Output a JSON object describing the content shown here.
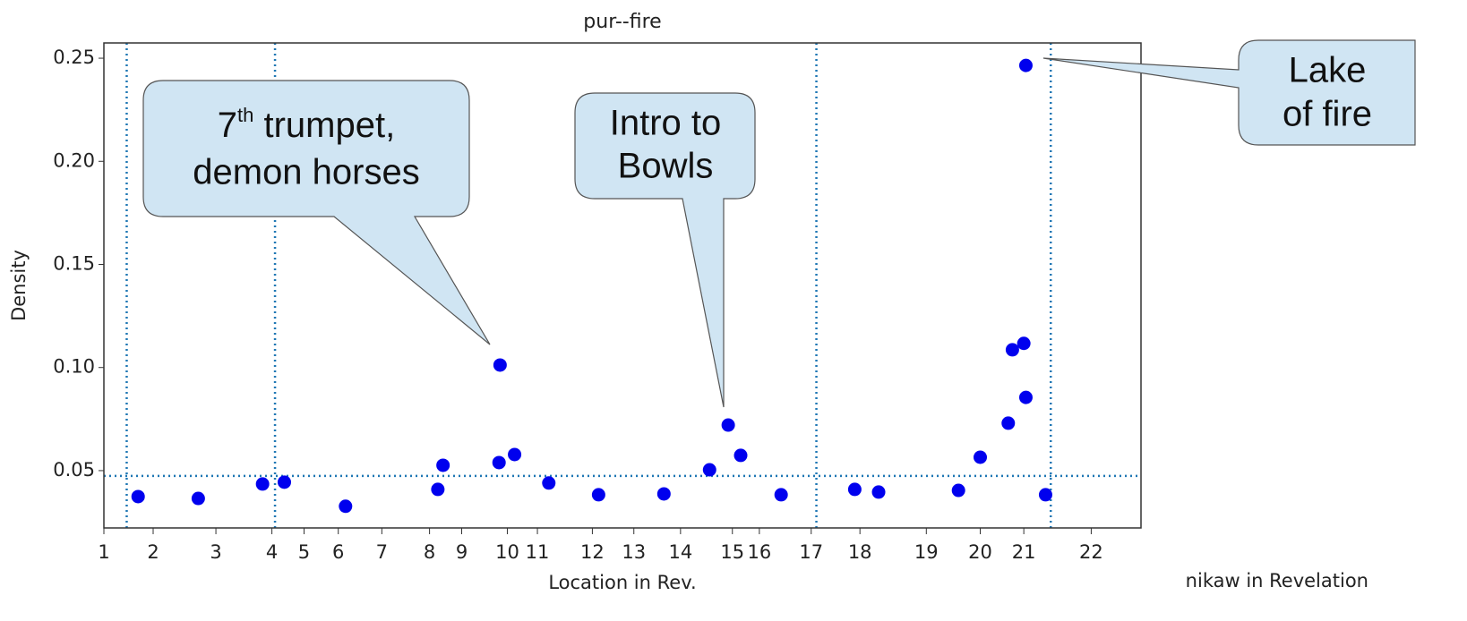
{
  "chart_data": {
    "type": "scatter",
    "title": "pur--fire",
    "x_label": "Location in Rev.",
    "y_label": "Density",
    "footer": "nikaw in Revelation",
    "color": "#0000ee",
    "reference_color": "#1f77b4",
    "xlim": [
      0,
      100
    ],
    "ylim": [
      0.0222,
      0.2574
    ],
    "xticks": [
      {
        "value": 0,
        "label": "1"
      },
      {
        "value": 4.75,
        "label": "2"
      },
      {
        "value": 10.8,
        "label": "3"
      },
      {
        "value": 16.2,
        "label": "4"
      },
      {
        "value": 19.3,
        "label": "5"
      },
      {
        "value": 22.6,
        "label": "6"
      },
      {
        "value": 26.8,
        "label": "7"
      },
      {
        "value": 31.4,
        "label": "8"
      },
      {
        "value": 34.5,
        "label": "9"
      },
      {
        "value": 38.9,
        "label": "10"
      },
      {
        "value": 41.8,
        "label": "11"
      },
      {
        "value": 47.1,
        "label": "12"
      },
      {
        "value": 51.1,
        "label": "13"
      },
      {
        "value": 55.6,
        "label": "14"
      },
      {
        "value": 60.6,
        "label": "15"
      },
      {
        "value": 63.2,
        "label": "16"
      },
      {
        "value": 68.2,
        "label": "17"
      },
      {
        "value": 72.9,
        "label": "18"
      },
      {
        "value": 79.3,
        "label": "19"
      },
      {
        "value": 84.5,
        "label": "20"
      },
      {
        "value": 88.7,
        "label": "21"
      },
      {
        "value": 95.2,
        "label": "22"
      }
    ],
    "yticks": [
      0.05,
      {
        "value": 0.1,
        "label": "0.10"
      },
      0.15,
      {
        "value": 0.2,
        "label": "0.20"
      },
      0.25
    ],
    "vlines": [
      2.2,
      16.5,
      68.7,
      91.3
    ],
    "hline": 0.0474,
    "x": [
      3.3,
      9.1,
      15.3,
      17.4,
      23.3,
      32.2,
      32.7,
      38.2,
      38.1,
      39.6,
      42.9,
      47.7,
      54.0,
      58.4,
      60.2,
      61.4,
      65.3,
      72.4,
      74.7,
      82.4,
      84.5,
      87.2,
      87.6,
      88.7,
      88.9,
      88.9,
      90.8
    ],
    "values": [
      0.0374,
      0.0365,
      0.0435,
      0.0444,
      0.0327,
      0.0409,
      0.0526,
      0.1012,
      0.0539,
      0.0578,
      0.044,
      0.0383,
      0.0387,
      0.0504,
      0.0721,
      0.0574,
      0.0383,
      0.0409,
      0.0396,
      0.0404,
      0.0565,
      0.073,
      0.1086,
      0.1117,
      0.0855,
      0.2465,
      0.0383
    ],
    "annotations": [
      {
        "lines": [
          "7",
          "th",
          " trumpet,",
          "demon horses"
        ]
      },
      {
        "lines": [
          "Intro to",
          "Bowls"
        ]
      },
      {
        "lines": [
          "Lake",
          "of fire"
        ]
      }
    ]
  }
}
